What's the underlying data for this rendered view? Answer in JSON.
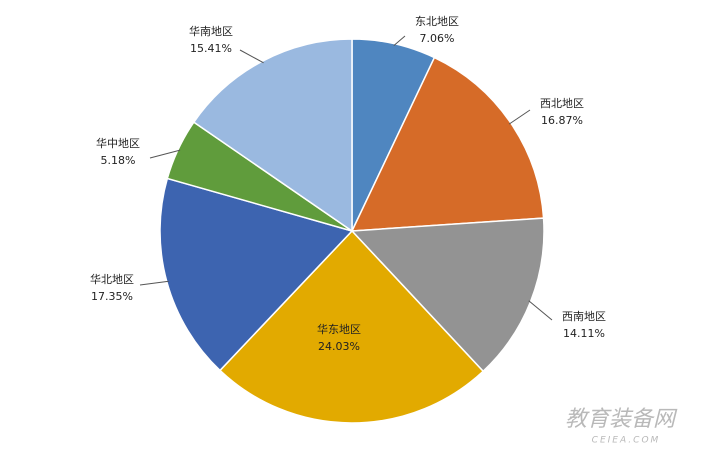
{
  "chart_data": {
    "type": "pie",
    "categories": [
      "东北地区",
      "西北地区",
      "西南地区",
      "华东地区",
      "华北地区",
      "华中地区",
      "华南地区"
    ],
    "values": [
      7.06,
      16.87,
      14.11,
      24.03,
      17.35,
      5.18,
      15.41
    ],
    "value_labels": [
      "7.06%",
      "16.87%",
      "14.11%",
      "24.03%",
      "17.35%",
      "5.18%",
      "15.41%"
    ],
    "colors": [
      "#4f86c0",
      "#d66b28",
      "#939393",
      "#e2aa00",
      "#3d64b0",
      "#609c3c",
      "#9ab9e0"
    ]
  },
  "watermark": {
    "title": "教育装备网",
    "url": "CEIEA.COM"
  }
}
